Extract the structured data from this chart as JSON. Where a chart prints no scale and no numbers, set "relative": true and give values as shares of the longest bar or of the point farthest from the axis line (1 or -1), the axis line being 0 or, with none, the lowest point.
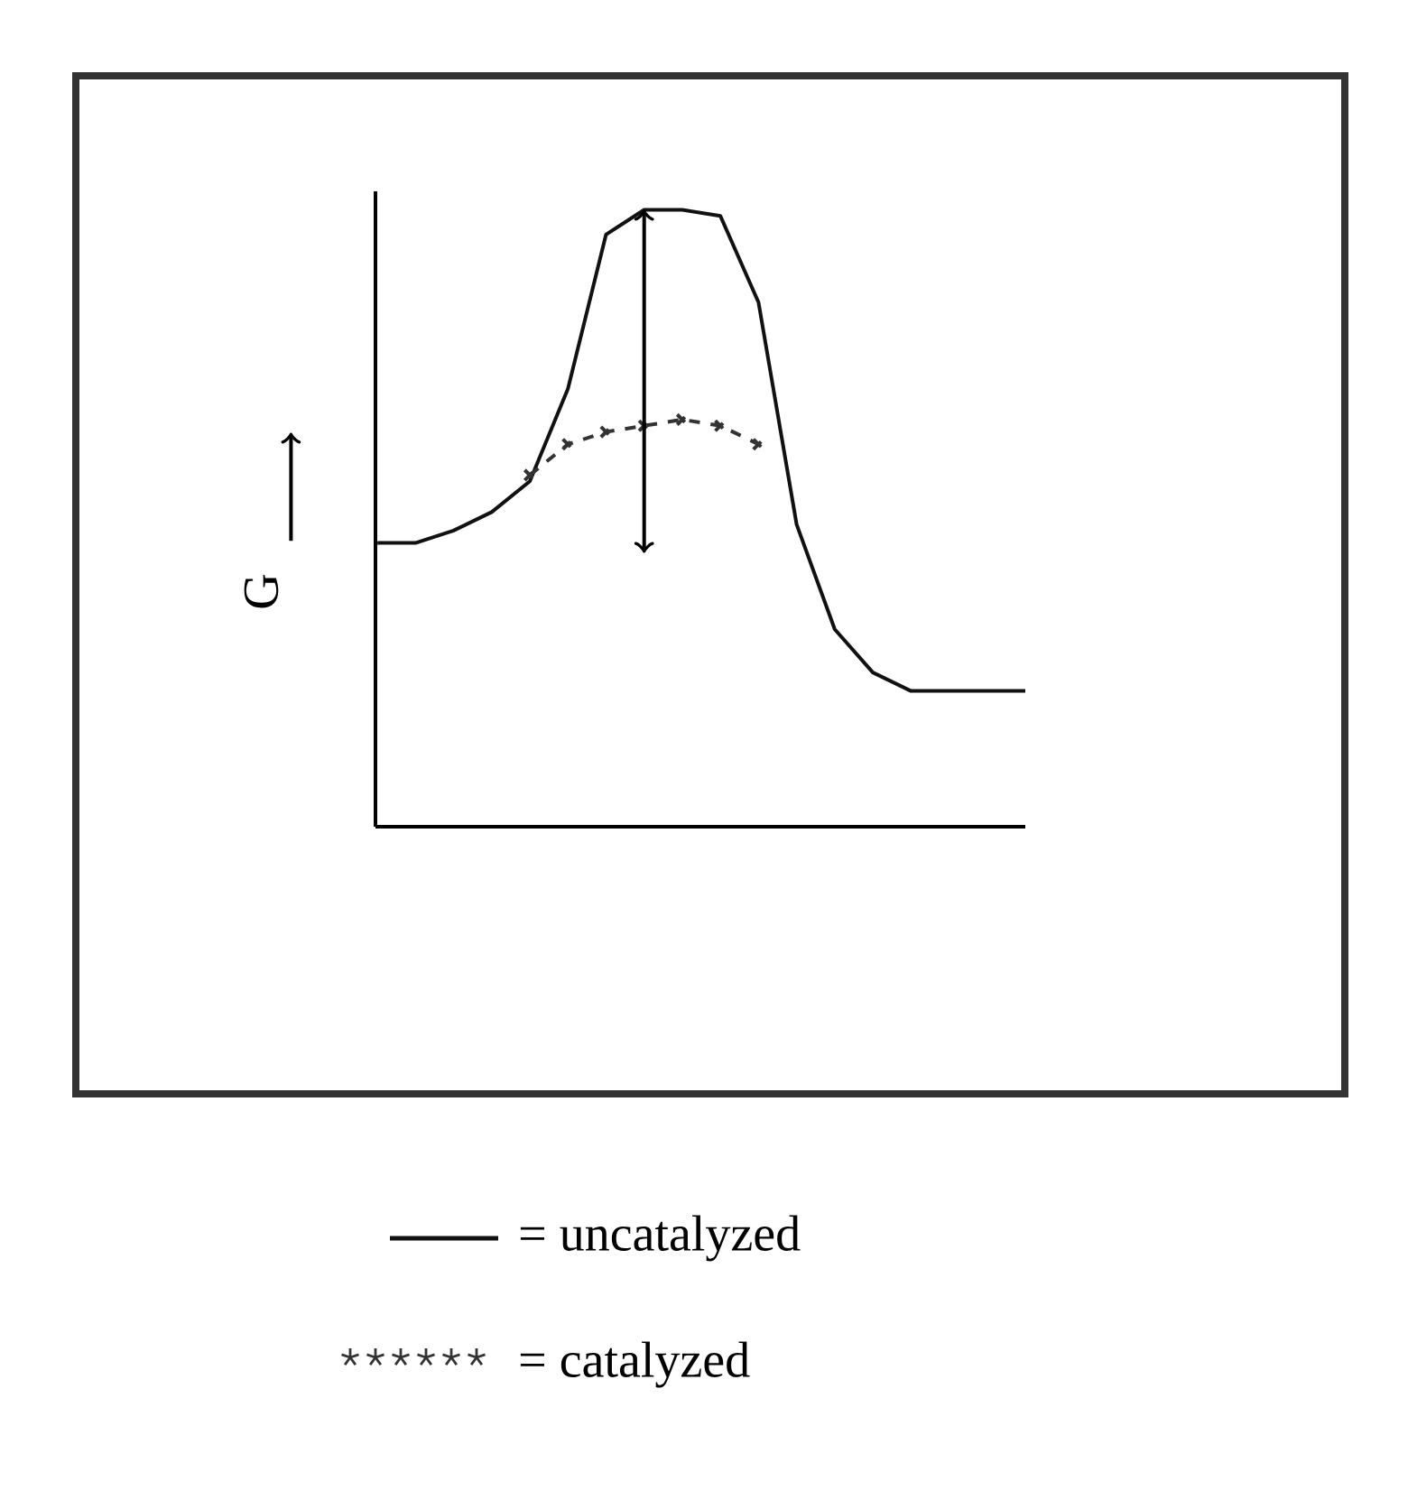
{
  "chart_data": {
    "type": "line",
    "relative": true,
    "ylabel": "G",
    "legend": "bottom",
    "categories": [
      null,
      null,
      null,
      null,
      null,
      null,
      null,
      null,
      null,
      null,
      null,
      null,
      null,
      null,
      null,
      null,
      null,
      null
    ],
    "series": [
      {
        "name": "= uncatalyzed",
        "color": "#111111",
        "marker": "none",
        "line_style": "solid",
        "values": [
          0.46,
          0.46,
          0.48,
          0.51,
          0.56,
          0.71,
          0.96,
          1.0,
          1.0,
          0.99,
          0.85,
          0.49,
          0.32,
          0.25,
          0.22,
          0.22,
          0.22,
          0.22
        ]
      },
      {
        "name": "= catalyzed",
        "color": "#333333",
        "marker": "cross",
        "line_style": "dashed",
        "values": [
          null,
          null,
          null,
          null,
          0.57,
          0.62,
          0.64,
          0.65,
          0.66,
          0.65,
          0.62,
          null,
          null,
          null,
          null,
          null,
          null,
          null
        ]
      }
    ]
  }
}
